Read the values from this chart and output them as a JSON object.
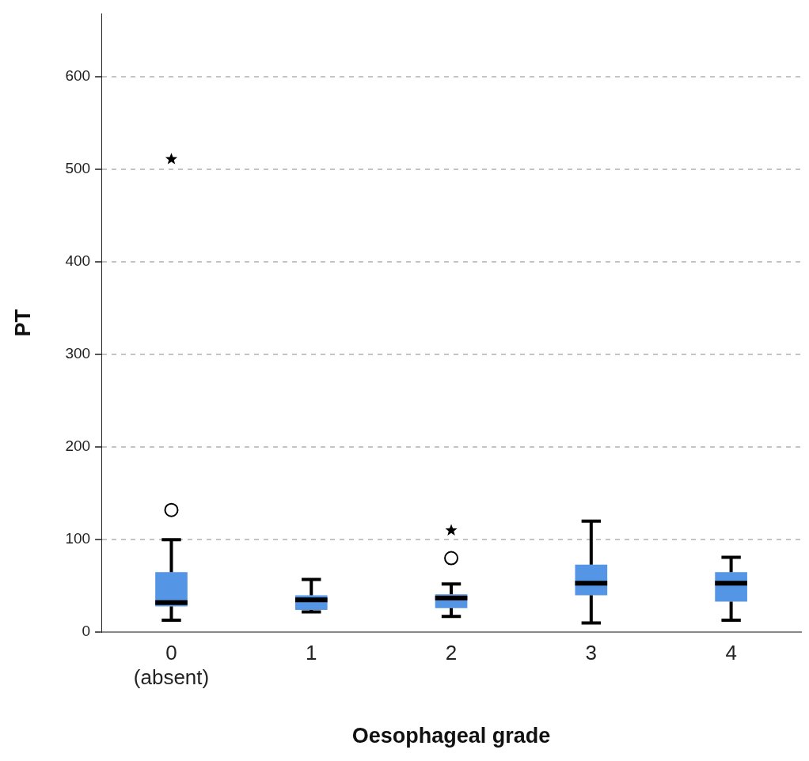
{
  "chart_data": {
    "type": "box",
    "xlabel": "Oesophageal grade",
    "ylabel": "PT",
    "categories": [
      "0\n(absent)",
      "1",
      "2",
      "3",
      "4"
    ],
    "ylim": [
      0,
      668
    ],
    "yticks": [
      0,
      100,
      200,
      300,
      400,
      500,
      600
    ],
    "grid": "y",
    "legend": false,
    "series": [
      {
        "type": "box",
        "color": "#5595e5",
        "boxes": [
          {
            "low": 13,
            "q1": 28,
            "median": 32,
            "q3": 65,
            "high": 100,
            "outliers": [
              132
            ]
          },
          {
            "low": 22,
            "q1": 24,
            "median": 35,
            "q3": 40,
            "high": 57
          },
          {
            "low": 17,
            "q1": 26,
            "median": 37,
            "q3": 41,
            "high": 52,
            "outliers": [
              80
            ]
          },
          {
            "low": 10,
            "q1": 40,
            "median": 53,
            "q3": 73,
            "high": 120
          },
          {
            "low": 13,
            "q1": 33,
            "median": 53,
            "q3": 65,
            "high": 81
          }
        ]
      },
      {
        "type": "scatter",
        "marker": "star",
        "color": "#000000",
        "x": [
          "0\n(absent)",
          "2"
        ],
        "values": [
          511,
          110
        ]
      }
    ]
  }
}
